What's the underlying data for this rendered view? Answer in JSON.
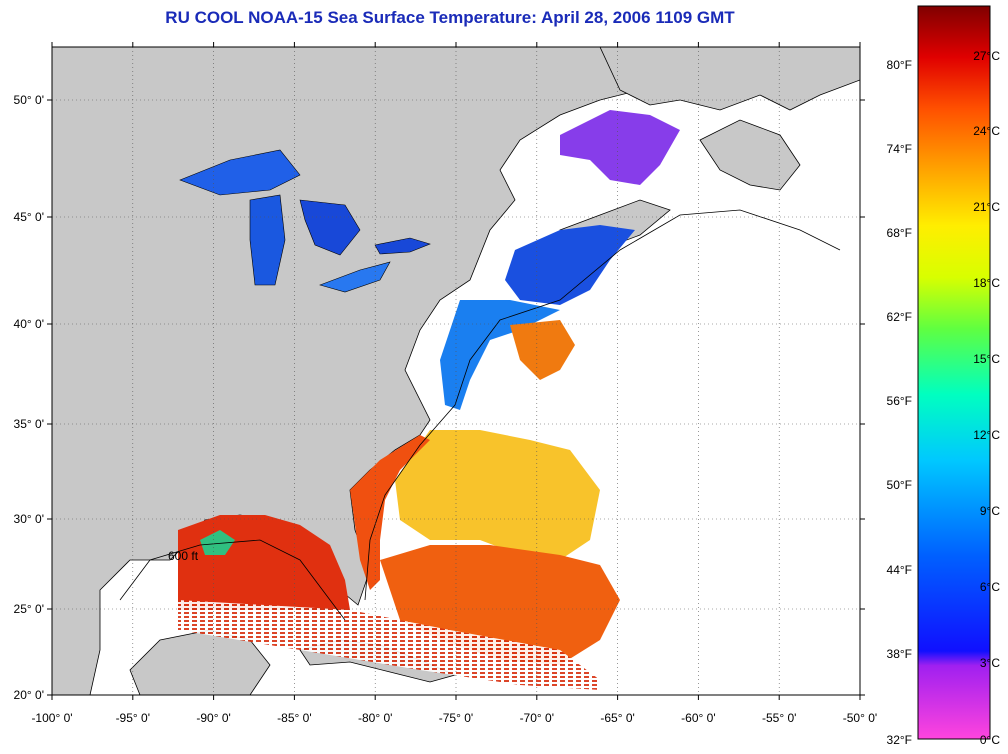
{
  "title": "RU COOL  NOAA-15  Sea Surface Temperature:  April 28, 2006 1109 GMT",
  "map": {
    "lon_ticks": [
      "-100° 0'",
      "-95° 0'",
      "-90° 0'",
      "-85° 0'",
      "-80° 0'",
      "-75° 0'",
      "-70° 0'",
      "-65° 0'",
      "-60° 0'",
      "-55° 0'",
      "-50° 0'"
    ],
    "lat_ticks": [
      "50° 0'",
      "45° 0'",
      "40° 0'",
      "35° 0'",
      "30° 0'",
      "25° 0'",
      "20° 0'"
    ],
    "contour_label": "600 ft",
    "land_color": "#c8c8c8",
    "ocean_nodata_color": "#ffffff"
  },
  "colorbar": {
    "fahrenheit_labels": [
      "80°F",
      "74°F",
      "68°F",
      "62°F",
      "56°F",
      "50°F",
      "44°F",
      "38°F",
      "32°F"
    ],
    "celsius_labels": [
      "27°C",
      "24°C",
      "21°C",
      "18°C",
      "15°C",
      "12°C",
      "9°C",
      "6°C",
      "3°C",
      "0°C"
    ],
    "colors": [
      "#ff44dd",
      "#a020f0",
      "#0000ff",
      "#0080ff",
      "#00ffff",
      "#30ff80",
      "#c0ff00",
      "#ffff00",
      "#ffa000",
      "#ff4000",
      "#e00000",
      "#800000"
    ]
  }
}
